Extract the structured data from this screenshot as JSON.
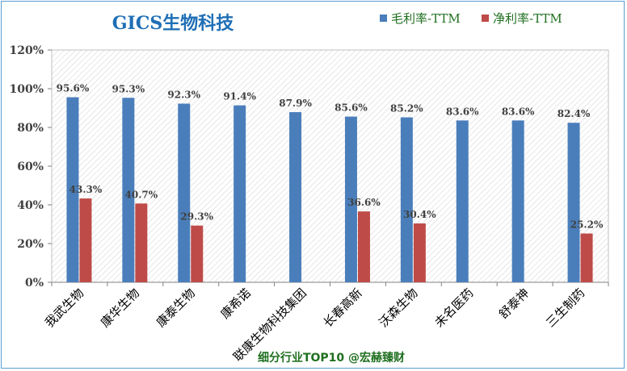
{
  "chart_data": {
    "type": "bar",
    "title": "GICS生物科技",
    "footer": "细分行业TOP10 @宏赫臻财",
    "categories": [
      "我武生物",
      "康华生物",
      "康泰生物",
      "康希诺",
      "联康生物科技集团",
      "长春高新",
      "沃森生物",
      "未名医药",
      "舒泰神",
      "三生制药"
    ],
    "series": [
      {
        "name": "毛利率-TTM",
        "color": "#4a7ebb",
        "values": [
          95.6,
          95.3,
          92.3,
          91.4,
          87.9,
          85.6,
          85.2,
          83.6,
          83.6,
          82.4
        ],
        "labels": [
          "95.6%",
          "95.3%",
          "92.3%",
          "91.4%",
          "87.9%",
          "85.6%",
          "85.2%",
          "83.6%",
          "83.6%",
          "82.4%"
        ]
      },
      {
        "name": "净利率-TTM",
        "color": "#be4b48",
        "values": [
          43.3,
          40.7,
          29.3,
          null,
          null,
          36.6,
          30.4,
          null,
          null,
          25.2
        ],
        "labels": [
          "43.3%",
          "40.7%",
          "29.3%",
          null,
          null,
          "36.6%",
          "30.4%",
          null,
          null,
          "25.2%"
        ]
      }
    ],
    "yticks": [
      "0%",
      "20%",
      "40%",
      "60%",
      "80%",
      "100%",
      "120%"
    ],
    "ylim": [
      0,
      120
    ],
    "legend": "top-right",
    "grid": false,
    "plot_background": "diagonal hatch",
    "title_color": "#1f6fb5",
    "legend_text_color": "#1f6f1f",
    "footer_color": "#1f6f1f"
  }
}
